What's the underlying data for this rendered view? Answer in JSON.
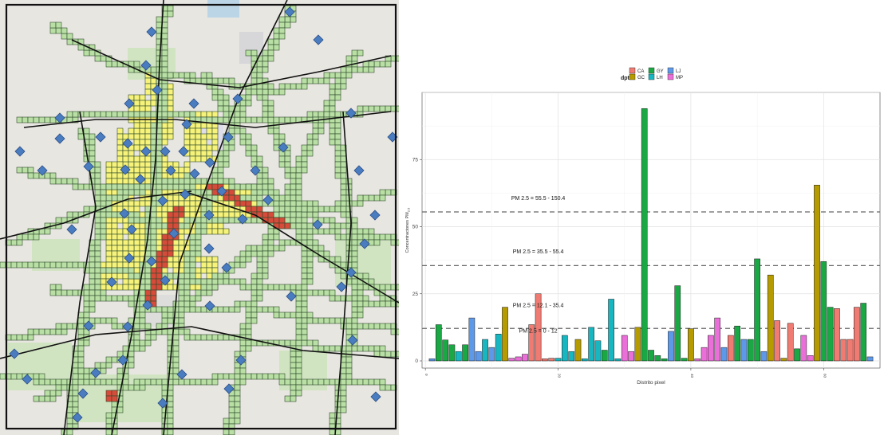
{
  "map": {
    "colors": {
      "base": "#e8e6e1",
      "road": "#111111",
      "green_cell": "#b9dfa5",
      "green_cell_stroke": "#2e4a2a",
      "yellow_cell": "#f6f27a",
      "red_cell": "#d74b3a",
      "station": "#4a7cc0",
      "park": "#c8e3b5"
    },
    "icons": [
      "monitoring-station-diamond-icon"
    ]
  },
  "chart_data": {
    "type": "bar",
    "title": "",
    "xlabel": "Distrito pixel",
    "ylabel": "Concentraciones PM2.5",
    "xlim": [
      0,
      68
    ],
    "ylim": [
      0,
      100
    ],
    "x_ticks": [
      0,
      20,
      40,
      60
    ],
    "y_ticks": [
      0,
      25,
      50,
      75
    ],
    "legend_title": "dpto",
    "legend_position": "top",
    "grid": true,
    "categories_colors": {
      "CA": "#f07b72",
      "GC": "#b59a00",
      "GY": "#1aa845",
      "LH": "#17b7c1",
      "LJ": "#5e98e8",
      "MP": "#ea6fd8"
    },
    "legend": [
      {
        "key": "CA",
        "label": "CA"
      },
      {
        "key": "GC",
        "label": "GC"
      },
      {
        "key": "GY",
        "label": "GY"
      },
      {
        "key": "LH",
        "label": "LH"
      },
      {
        "key": "LJ",
        "label": "LJ"
      },
      {
        "key": "MP",
        "label": "MP"
      }
    ],
    "reference_lines": [
      {
        "value": 12.1,
        "label": "PM 2.5 = 0 - 12",
        "label_y": 10.5
      },
      {
        "value": 35.5,
        "label": "PM 2.5 = 35.5 - 55.4",
        "label_y": 40
      },
      {
        "value": 55.5,
        "label": "PM 2.5 = 55.5 - 150.4",
        "label_y": 60
      },
      {
        "value": 12.1,
        "label": "PM 2.5 = 12.1 - 35.4",
        "label_y": 20,
        "no_line": true
      }
    ],
    "bars": [
      {
        "x": 1,
        "v": 0.8,
        "c": "LJ"
      },
      {
        "x": 2,
        "v": 13.5,
        "c": "GY"
      },
      {
        "x": 3,
        "v": 7.8,
        "c": "GY"
      },
      {
        "x": 4,
        "v": 6,
        "c": "GY"
      },
      {
        "x": 5,
        "v": 3.5,
        "c": "LH"
      },
      {
        "x": 6,
        "v": 6,
        "c": "GY"
      },
      {
        "x": 7,
        "v": 16,
        "c": "LJ"
      },
      {
        "x": 8,
        "v": 3.5,
        "c": "LJ"
      },
      {
        "x": 9,
        "v": 8,
        "c": "LH"
      },
      {
        "x": 10,
        "v": 5,
        "c": "LJ"
      },
      {
        "x": 11,
        "v": 10,
        "c": "LH"
      },
      {
        "x": 12,
        "v": 20,
        "c": "GC"
      },
      {
        "x": 13,
        "v": 1,
        "c": "MP"
      },
      {
        "x": 14,
        "v": 1.5,
        "c": "MP"
      },
      {
        "x": 15,
        "v": 2.5,
        "c": "MP"
      },
      {
        "x": 16,
        "v": 13.5,
        "c": "CA"
      },
      {
        "x": 17,
        "v": 25,
        "c": "CA"
      },
      {
        "x": 18,
        "v": 0.8,
        "c": "CA"
      },
      {
        "x": 19,
        "v": 1,
        "c": "CA"
      },
      {
        "x": 20,
        "v": 1,
        "c": "LH"
      },
      {
        "x": 21,
        "v": 9.5,
        "c": "LH"
      },
      {
        "x": 22,
        "v": 3.5,
        "c": "LH"
      },
      {
        "x": 23,
        "v": 8,
        "c": "GC"
      },
      {
        "x": 24,
        "v": 0.8,
        "c": "LH"
      },
      {
        "x": 25,
        "v": 12.5,
        "c": "LH"
      },
      {
        "x": 26,
        "v": 7.5,
        "c": "LH"
      },
      {
        "x": 27,
        "v": 4,
        "c": "GY"
      },
      {
        "x": 28,
        "v": 23,
        "c": "LH"
      },
      {
        "x": 29,
        "v": 0.8,
        "c": "LH"
      },
      {
        "x": 30,
        "v": 9.5,
        "c": "MP"
      },
      {
        "x": 31,
        "v": 3.5,
        "c": "MP"
      },
      {
        "x": 32,
        "v": 12.5,
        "c": "GC"
      },
      {
        "x": 33,
        "v": 94,
        "c": "GY"
      },
      {
        "x": 34,
        "v": 4,
        "c": "GY"
      },
      {
        "x": 35,
        "v": 2,
        "c": "GY"
      },
      {
        "x": 36,
        "v": 0.8,
        "c": "GY"
      },
      {
        "x": 37,
        "v": 11,
        "c": "LJ"
      },
      {
        "x": 38,
        "v": 28,
        "c": "GY"
      },
      {
        "x": 39,
        "v": 1,
        "c": "GY"
      },
      {
        "x": 40,
        "v": 12,
        "c": "GC"
      },
      {
        "x": 41,
        "v": 0.8,
        "c": "MP"
      },
      {
        "x": 42,
        "v": 5,
        "c": "MP"
      },
      {
        "x": 43,
        "v": 9.5,
        "c": "MP"
      },
      {
        "x": 44,
        "v": 16,
        "c": "MP"
      },
      {
        "x": 45,
        "v": 5,
        "c": "LJ"
      },
      {
        "x": 46,
        "v": 9.5,
        "c": "CA"
      },
      {
        "x": 47,
        "v": 13,
        "c": "GY"
      },
      {
        "x": 48,
        "v": 8,
        "c": "LJ"
      },
      {
        "x": 49,
        "v": 8,
        "c": "GY"
      },
      {
        "x": 50,
        "v": 38,
        "c": "GY"
      },
      {
        "x": 51,
        "v": 3.5,
        "c": "LJ"
      },
      {
        "x": 52,
        "v": 32,
        "c": "GC"
      },
      {
        "x": 53,
        "v": 15,
        "c": "CA"
      },
      {
        "x": 54,
        "v": 1,
        "c": "GC"
      },
      {
        "x": 55,
        "v": 14,
        "c": "CA"
      },
      {
        "x": 56,
        "v": 4.5,
        "c": "GY"
      },
      {
        "x": 57,
        "v": 9.5,
        "c": "MP"
      },
      {
        "x": 58,
        "v": 2,
        "c": "MP"
      },
      {
        "x": 59,
        "v": 65.5,
        "c": "GC"
      },
      {
        "x": 60,
        "v": 37,
        "c": "GY"
      },
      {
        "x": 61,
        "v": 20,
        "c": "GY"
      },
      {
        "x": 62,
        "v": 19.5,
        "c": "CA"
      },
      {
        "x": 63,
        "v": 8,
        "c": "CA"
      },
      {
        "x": 64,
        "v": 8,
        "c": "CA"
      },
      {
        "x": 65,
        "v": 20,
        "c": "CA"
      },
      {
        "x": 66,
        "v": 21.5,
        "c": "GY"
      },
      {
        "x": 67,
        "v": 1.5,
        "c": "LJ"
      }
    ]
  }
}
